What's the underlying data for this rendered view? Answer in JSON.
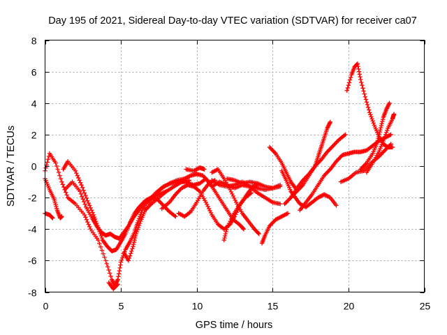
{
  "chart_data": {
    "type": "scatter",
    "title": "Day 195 of 2021, Sidereal Day-to-day VTEC variation (SDTVAR) for receiver ca07",
    "xlabel": "GPS time / hours",
    "ylabel": "SDTVAR / TECUs",
    "xlim": [
      0,
      25
    ],
    "ylim": [
      -8,
      8
    ],
    "xticks": [
      0,
      5,
      10,
      15,
      20,
      25
    ],
    "yticks": [
      -8,
      -6,
      -4,
      -2,
      0,
      2,
      4,
      6,
      8
    ],
    "grid": true,
    "marker": "+",
    "color": "#ff0000",
    "series": [
      {
        "points": [
          [
            0.0,
            -0.3
          ],
          [
            0.3,
            0.8
          ],
          [
            0.7,
            0.2
          ],
          [
            1.1,
            -1.0
          ],
          [
            1.5,
            -2.0
          ],
          [
            2.0,
            -2.4
          ],
          [
            2.6,
            -3.1
          ],
          [
            3.0,
            -4.0
          ],
          [
            3.5,
            -4.7
          ],
          [
            4.0,
            -6.0
          ],
          [
            4.4,
            -7.2
          ],
          [
            4.6,
            -7.6
          ],
          [
            4.8,
            -7.2
          ],
          [
            5.0,
            -6.1
          ],
          [
            5.3,
            -5.3
          ],
          [
            5.6,
            -4.8
          ],
          [
            5.9,
            -4.2
          ],
          [
            6.1,
            -3.6
          ],
          [
            6.4,
            -2.8
          ],
          [
            6.8,
            -2.2
          ],
          [
            7.3,
            -1.7
          ],
          [
            7.8,
            -1.3
          ],
          [
            8.3,
            -1.1
          ],
          [
            8.8,
            -1.0
          ],
          [
            9.3,
            -1.0
          ],
          [
            9.8,
            -1.2
          ],
          [
            10.2,
            -1.1
          ],
          [
            10.6,
            -0.8
          ],
          [
            11.0,
            -1.3
          ],
          [
            11.5,
            -1.0
          ],
          [
            12.0,
            -1.2
          ],
          [
            12.5,
            -1.4
          ],
          [
            13.0,
            -1.2
          ],
          [
            13.5,
            -1.3
          ],
          [
            14.0,
            -1.4
          ],
          [
            14.5,
            -1.5
          ],
          [
            15.0,
            -1.4
          ],
          [
            15.5,
            -1.2
          ]
        ]
      },
      {
        "points": [
          [
            0.0,
            -0.8
          ],
          [
            0.3,
            -1.5
          ],
          [
            0.6,
            -2.1
          ],
          [
            0.8,
            -2.8
          ],
          [
            1.0,
            -3.3
          ],
          [
            1.1,
            -3.2
          ]
        ]
      },
      {
        "points": [
          [
            0.0,
            -3.0
          ],
          [
            0.3,
            -3.1
          ],
          [
            0.5,
            -3.3
          ]
        ]
      },
      {
        "points": [
          [
            1.2,
            -0.2
          ],
          [
            1.5,
            0.3
          ],
          [
            2.0,
            -0.3
          ],
          [
            2.4,
            -1.2
          ],
          [
            2.8,
            -2.2
          ],
          [
            3.2,
            -3.1
          ],
          [
            3.5,
            -3.9
          ],
          [
            3.8,
            -4.7
          ],
          [
            4.1,
            -5.1
          ],
          [
            4.4,
            -5.4
          ],
          [
            4.7,
            -5.3
          ],
          [
            5.0,
            -4.8
          ],
          [
            5.3,
            -4.3
          ],
          [
            5.6,
            -3.6
          ],
          [
            5.9,
            -3.0
          ],
          [
            6.2,
            -2.6
          ],
          [
            6.6,
            -2.2
          ],
          [
            7.0,
            -2.0
          ],
          [
            7.5,
            -1.8
          ],
          [
            8.0,
            -1.6
          ]
        ]
      },
      {
        "points": [
          [
            1.3,
            -1.5
          ],
          [
            1.8,
            -1.0
          ],
          [
            2.3,
            -1.6
          ],
          [
            2.7,
            -2.6
          ],
          [
            3.1,
            -3.3
          ],
          [
            3.4,
            -3.8
          ],
          [
            3.7,
            -4.2
          ],
          [
            4.0,
            -4.4
          ],
          [
            4.3,
            -4.3
          ],
          [
            4.6,
            -4.5
          ],
          [
            4.9,
            -4.6
          ],
          [
            5.2,
            -4.2
          ],
          [
            5.5,
            -3.8
          ],
          [
            5.8,
            -3.3
          ],
          [
            6.1,
            -2.9
          ],
          [
            6.4,
            -2.5
          ],
          [
            6.7,
            -2.2
          ],
          [
            7.0,
            -2.0
          ],
          [
            7.4,
            -2.1
          ],
          [
            7.8,
            -2.5
          ],
          [
            8.2,
            -2.9
          ],
          [
            8.6,
            -3.2
          ]
        ]
      },
      {
        "points": [
          [
            4.2,
            -7.4
          ],
          [
            4.5,
            -7.8
          ],
          [
            4.8,
            -7.5
          ]
        ]
      },
      {
        "points": [
          [
            5.2,
            -5.5
          ],
          [
            5.5,
            -6.0
          ],
          [
            5.8,
            -5.1
          ],
          [
            6.0,
            -4.3
          ],
          [
            6.3,
            -3.5
          ],
          [
            6.6,
            -2.8
          ],
          [
            7.0,
            -2.4
          ],
          [
            7.5,
            -2.0
          ],
          [
            8.0,
            -1.6
          ],
          [
            8.5,
            -1.3
          ],
          [
            9.0,
            -1.0
          ],
          [
            9.5,
            -0.9
          ]
        ]
      },
      {
        "points": [
          [
            6.8,
            -2.3
          ],
          [
            7.2,
            -1.9
          ],
          [
            7.7,
            -1.4
          ],
          [
            8.2,
            -1.1
          ],
          [
            8.7,
            -0.9
          ],
          [
            9.2,
            -0.8
          ],
          [
            9.6,
            -0.6
          ],
          [
            10.0,
            -0.5
          ],
          [
            10.4,
            -0.6
          ],
          [
            10.8,
            -1.0
          ],
          [
            11.2,
            -1.6
          ],
          [
            11.6,
            -2.2
          ],
          [
            12.0,
            -2.8
          ],
          [
            12.4,
            -3.4
          ],
          [
            12.8,
            -3.7
          ],
          [
            13.1,
            -4.0
          ]
        ]
      },
      {
        "points": [
          [
            7.7,
            -2.7
          ],
          [
            8.2,
            -2.3
          ],
          [
            8.6,
            -1.8
          ],
          [
            9.0,
            -1.4
          ],
          [
            9.4,
            -1.2
          ],
          [
            9.8,
            -1.3
          ],
          [
            10.2,
            -1.6
          ],
          [
            10.6,
            -2.3
          ],
          [
            11.0,
            -3.1
          ],
          [
            11.4,
            -3.7
          ],
          [
            11.8,
            -4.0
          ],
          [
            12.2,
            -3.7
          ],
          [
            12.5,
            -3.2
          ],
          [
            12.9,
            -2.4
          ],
          [
            13.3,
            -1.8
          ],
          [
            13.7,
            -1.3
          ],
          [
            14.0,
            -1.2
          ]
        ]
      },
      {
        "points": [
          [
            8.8,
            -3.0
          ],
          [
            9.2,
            -3.2
          ],
          [
            9.6,
            -2.9
          ],
          [
            10.0,
            -2.3
          ],
          [
            10.4,
            -1.6
          ],
          [
            10.8,
            -1.1
          ],
          [
            11.2,
            -0.9
          ]
        ]
      },
      {
        "points": [
          [
            9.3,
            -0.2
          ],
          [
            9.8,
            -0.3
          ],
          [
            10.2,
            -0.1
          ],
          [
            10.5,
            -0.2
          ]
        ]
      },
      {
        "points": [
          [
            11.0,
            -0.4
          ],
          [
            11.4,
            -0.2
          ],
          [
            11.8,
            -0.8
          ],
          [
            12.2,
            -1.5
          ],
          [
            12.6,
            -2.3
          ],
          [
            13.0,
            -3.0
          ],
          [
            13.4,
            -3.5
          ],
          [
            13.8,
            -4.0
          ],
          [
            14.1,
            -4.3
          ]
        ]
      },
      {
        "points": [
          [
            11.8,
            -4.7
          ],
          [
            12.0,
            -3.9
          ],
          [
            12.4,
            -3.1
          ],
          [
            12.8,
            -2.5
          ],
          [
            13.2,
            -2.0
          ],
          [
            13.6,
            -1.7
          ]
        ]
      },
      {
        "points": [
          [
            11.0,
            -0.9
          ],
          [
            11.5,
            -1.2
          ],
          [
            12.0,
            -1.3
          ],
          [
            12.5,
            -1.2
          ],
          [
            13.0,
            -1.0
          ],
          [
            13.5,
            -1.3
          ],
          [
            14.0,
            -1.7
          ],
          [
            14.5,
            -2.0
          ],
          [
            15.0,
            -2.3
          ],
          [
            15.5,
            -2.4
          ]
        ]
      },
      {
        "points": [
          [
            12.0,
            -0.8
          ],
          [
            12.5,
            -0.9
          ],
          [
            13.0,
            -1.1
          ],
          [
            13.5,
            -1.0
          ],
          [
            14.0,
            -1.1
          ],
          [
            14.5,
            -1.3
          ],
          [
            15.0,
            -1.4
          ],
          [
            15.5,
            -1.3
          ]
        ]
      },
      {
        "points": [
          [
            14.3,
            -4.9
          ],
          [
            14.5,
            -4.4
          ],
          [
            14.8,
            -3.8
          ],
          [
            15.2,
            -3.4
          ],
          [
            15.6,
            -3.2
          ],
          [
            16.0,
            -3.0
          ]
        ]
      },
      {
        "points": [
          [
            14.8,
            1.2
          ],
          [
            15.2,
            0.8
          ],
          [
            15.6,
            0.2
          ],
          [
            15.9,
            -0.4
          ],
          [
            16.2,
            -1.0
          ],
          [
            16.5,
            -1.4
          ]
        ]
      },
      {
        "points": [
          [
            15.6,
            -0.3
          ],
          [
            15.9,
            -0.9
          ],
          [
            16.2,
            -1.6
          ],
          [
            16.5,
            -2.0
          ],
          [
            16.8,
            -2.4
          ],
          [
            17.2,
            -2.6
          ],
          [
            17.6,
            -2.3
          ],
          [
            18.0,
            -2.0
          ],
          [
            18.4,
            -1.8
          ],
          [
            18.8,
            -2.0
          ],
          [
            19.2,
            -2.5
          ]
        ]
      },
      {
        "points": [
          [
            15.8,
            -2.4
          ],
          [
            16.2,
            -2.0
          ],
          [
            16.6,
            -1.6
          ],
          [
            17.0,
            -1.2
          ],
          [
            17.4,
            -0.6
          ],
          [
            17.8,
            0.0
          ],
          [
            18.2,
            0.4
          ],
          [
            18.6,
            0.9
          ],
          [
            19.0,
            1.3
          ],
          [
            19.4,
            1.7
          ],
          [
            19.8,
            2.0
          ]
        ]
      },
      {
        "points": [
          [
            16.2,
            -2.0
          ],
          [
            16.6,
            -1.4
          ],
          [
            17.0,
            -0.9
          ],
          [
            17.4,
            -0.5
          ],
          [
            17.8,
            0.0
          ],
          [
            18.0,
            0.6
          ],
          [
            18.2,
            1.2
          ],
          [
            18.4,
            1.8
          ],
          [
            18.6,
            2.4
          ],
          [
            18.8,
            2.8
          ]
        ]
      },
      {
        "points": [
          [
            16.8,
            -2.8
          ],
          [
            17.2,
            -2.3
          ],
          [
            17.6,
            -1.8
          ],
          [
            18.0,
            -1.2
          ],
          [
            18.4,
            -0.6
          ],
          [
            18.8,
            -0.2
          ],
          [
            19.2,
            0.3
          ],
          [
            19.6,
            0.7
          ],
          [
            20.0,
            0.8
          ],
          [
            20.4,
            0.9
          ],
          [
            20.8,
            0.9
          ],
          [
            21.2,
            1.0
          ],
          [
            21.6,
            1.3
          ],
          [
            22.0,
            1.6
          ],
          [
            22.4,
            1.8
          ],
          [
            22.8,
            2.0
          ]
        ]
      },
      {
        "points": [
          [
            19.5,
            -1.0
          ],
          [
            20.0,
            -0.8
          ],
          [
            20.5,
            -0.4
          ],
          [
            21.0,
            -0.3
          ],
          [
            21.5,
            0.2
          ],
          [
            22.0,
            0.6
          ],
          [
            22.4,
            1.0
          ],
          [
            22.8,
            1.4
          ]
        ]
      },
      {
        "points": [
          [
            19.9,
            4.8
          ],
          [
            20.2,
            5.8
          ],
          [
            20.4,
            6.3
          ],
          [
            20.6,
            6.5
          ],
          [
            20.8,
            5.5
          ],
          [
            21.1,
            4.4
          ],
          [
            21.4,
            3.4
          ],
          [
            21.7,
            2.6
          ],
          [
            22.0,
            1.9
          ],
          [
            22.3,
            1.4
          ],
          [
            22.6,
            1.2
          ],
          [
            22.9,
            1.2
          ]
        ]
      },
      {
        "points": [
          [
            20.8,
            -0.2
          ],
          [
            21.2,
            0.2
          ],
          [
            21.6,
            0.8
          ],
          [
            21.9,
            1.5
          ],
          [
            22.1,
            2.3
          ],
          [
            22.3,
            3.1
          ],
          [
            22.5,
            3.6
          ],
          [
            22.7,
            4.0
          ]
        ]
      },
      {
        "points": [
          [
            21.2,
            -0.4
          ],
          [
            21.6,
            0.2
          ],
          [
            22.0,
            0.9
          ],
          [
            22.3,
            1.6
          ],
          [
            22.6,
            2.4
          ],
          [
            22.9,
            3.0
          ],
          [
            23.0,
            3.3
          ]
        ]
      }
    ]
  }
}
